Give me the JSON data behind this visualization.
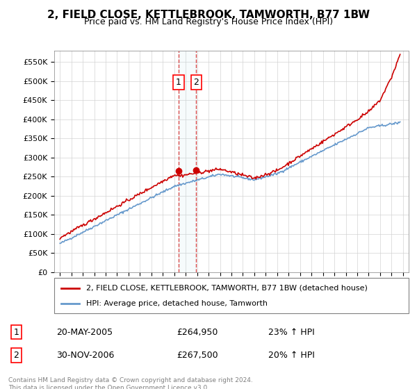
{
  "title": "2, FIELD CLOSE, KETTLEBROOK, TAMWORTH, B77 1BW",
  "subtitle": "Price paid vs. HM Land Registry's House Price Index (HPI)",
  "legend_line1": "2, FIELD CLOSE, KETTLEBROOK, TAMWORTH, B77 1BW (detached house)",
  "legend_line2": "HPI: Average price, detached house, Tamworth",
  "sale1_date": "20-MAY-2005",
  "sale1_price": 264950,
  "sale1_pct": "23% ↑ HPI",
  "sale2_date": "30-NOV-2006",
  "sale2_price": 267500,
  "sale2_pct": "20% ↑ HPI",
  "sale1_x": 2005.38,
  "sale2_x": 2006.92,
  "footer": "Contains HM Land Registry data © Crown copyright and database right 2024.\nThis data is licensed under the Open Government Licence v3.0.",
  "hpi_color": "#6699cc",
  "price_color": "#cc0000",
  "ylim_min": 0,
  "ylim_max": 580000,
  "xlim_min": 1994.5,
  "xlim_max": 2025.5
}
